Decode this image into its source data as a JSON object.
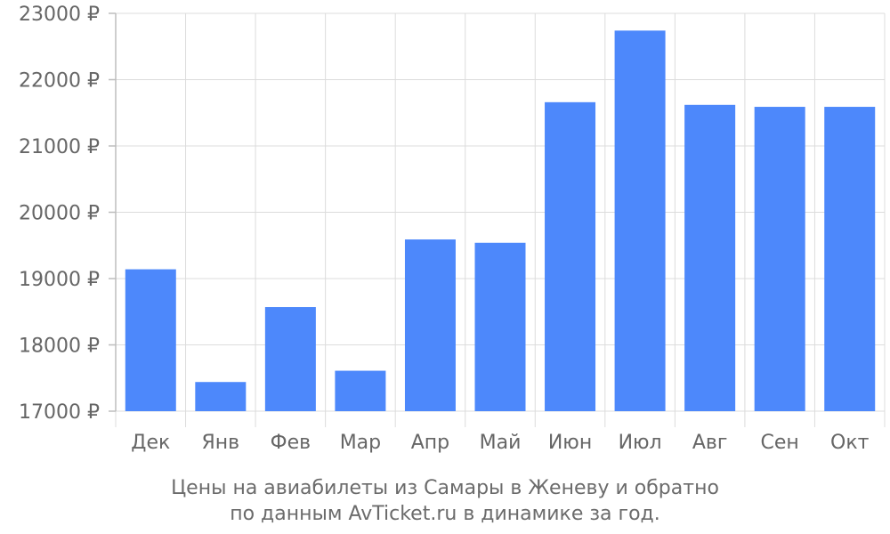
{
  "chart_data": {
    "type": "bar",
    "categories": [
      "Дек",
      "Янв",
      "Фев",
      "Мар",
      "Апр",
      "Май",
      "Июн",
      "Июл",
      "Авг",
      "Сен",
      "Окт"
    ],
    "values": [
      19140,
      17440,
      18570,
      17610,
      19590,
      19540,
      21660,
      22740,
      21620,
      21590,
      21590
    ],
    "ylim": [
      17000,
      23000
    ],
    "y_ticks": [
      17000,
      18000,
      19000,
      20000,
      21000,
      22000,
      23000
    ],
    "y_tick_labels": [
      "17000 ₽",
      "18000 ₽",
      "19000 ₽",
      "20000 ₽",
      "21000 ₽",
      "22000 ₽",
      "23000 ₽"
    ],
    "title": "",
    "xlabel": "",
    "ylabel": "",
    "grid": true,
    "bar_color": "#4d88fb"
  },
  "caption": {
    "line1": "Цены на авиабилеты из Самары в Женеву и обратно",
    "line2": "по данным AvTicket.ru в динамике за год."
  }
}
